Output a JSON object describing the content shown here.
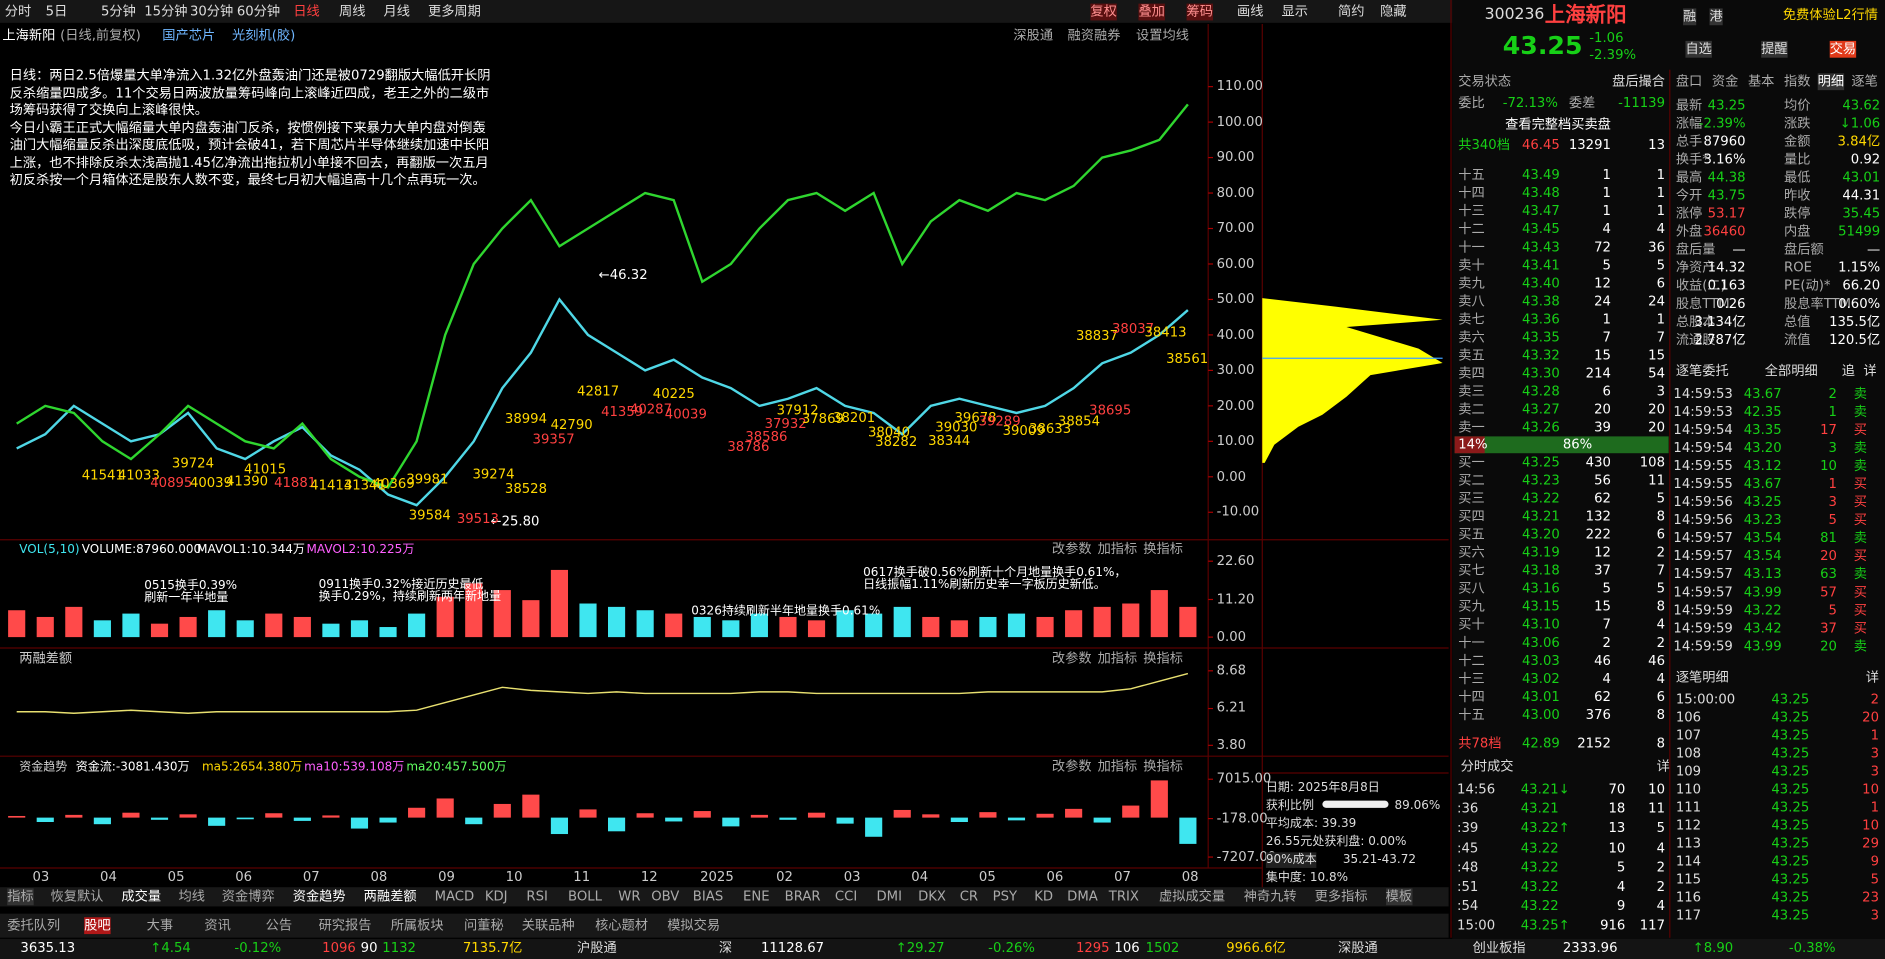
{
  "toolbar": {
    "periods": [
      "分时",
      "5日",
      "5分钟",
      "15分钟",
      "30分钟",
      "60分钟",
      "日线",
      "周线",
      "月线",
      "更多周期"
    ],
    "tools": [
      "复权",
      "叠加",
      "筹码",
      "画线",
      "显示",
      "简约",
      "隐藏"
    ]
  },
  "chart_header": {
    "name": "上海新阳",
    "mode": "(日线,前复权)",
    "tags": [
      "国产芯片",
      "光刻机(胶)"
    ],
    "links": [
      "深股通",
      "融资融券",
      "设置均线"
    ]
  },
  "commentary": [
    "日线：两日2.5倍爆量大单净流入1.32亿外盘轰油门还是被0729翻版大幅低开长阴反杀缩量四成多。11个交易日两波放量筹码峰向上滚峰近四成，老王之外的二级市场筹码获得了交换向上滚峰很快。",
    "今日小霸王正式大幅缩量大单内盘轰油门反杀，按惯例接下来暴力大单内盘对倒轰油门大幅缩量反杀出深度底低吸，预计会破41，若下周芯片半导体继续加速中长阳上涨，也不排除反杀太浅高抛1.45亿净流出拖拉机小单接不回去，再翻版一次五月初反杀按一个月箱体还是股东人数不变，最终七月初大幅追高十几个点再玩一次。"
  ],
  "chart_data": [
    {
      "type": "line",
      "x_axis_labels": [
        "03",
        "04",
        "05",
        "06",
        "07",
        "08",
        "09",
        "10",
        "11",
        "12",
        "2025",
        "02",
        "03",
        "04",
        "05",
        "06",
        "07",
        "08"
      ],
      "series": [
        {
          "name": "上海新阳",
          "color": "#4fd7e6",
          "values": [
            8,
            12,
            20,
            15,
            10,
            12,
            18,
            8,
            5,
            10,
            14,
            6,
            2,
            -5,
            -8,
            0,
            10,
            25,
            35,
            50,
            40,
            35,
            30,
            33,
            28,
            25,
            20,
            22,
            25,
            20,
            18,
            12,
            20,
            22,
            20,
            18,
            20,
            25,
            32,
            35,
            40,
            47
          ]
        },
        {
          "name": "光刻机(胶)",
          "color": "#2fd62f",
          "values": [
            15,
            20,
            18,
            10,
            5,
            12,
            20,
            15,
            10,
            8,
            15,
            5,
            0,
            -3,
            10,
            40,
            60,
            70,
            78,
            65,
            70,
            75,
            80,
            78,
            55,
            60,
            70,
            78,
            80,
            75,
            80,
            60,
            72,
            78,
            75,
            80,
            78,
            82,
            90,
            92,
            95,
            105
          ]
        }
      ],
      "ylim": [
        -16.4,
        116.8
      ],
      "yticks": [
        {
          "value": 110,
          "label": "110.00"
        },
        {
          "value": 100,
          "label": "100.00"
        },
        {
          "value": 90,
          "label": "90.00"
        },
        {
          "value": 80,
          "label": "80.00"
        },
        {
          "value": 70,
          "label": "70.00"
        },
        {
          "value": 60,
          "label": "60.00"
        },
        {
          "value": 50,
          "label": "50.00"
        },
        {
          "value": 40,
          "label": "40.00"
        },
        {
          "value": 30,
          "label": "30.00"
        },
        {
          "value": 20,
          "label": "20.00"
        },
        {
          "value": 10,
          "label": "10.00"
        },
        {
          "value": 0,
          "label": "0.00"
        },
        {
          "value": -10,
          "label": "-10.00"
        }
      ]
    },
    {
      "type": "bar",
      "colors": [
        "#ff4a4a",
        "#3fe6f0"
      ],
      "values": [
        8,
        6,
        9,
        5,
        7,
        4,
        6,
        8,
        5,
        7,
        6,
        4,
        5,
        3,
        7,
        12,
        16,
        14,
        11,
        20,
        10,
        9,
        8,
        7,
        6,
        5,
        7,
        6,
        5,
        8,
        7,
        9,
        6,
        5,
        6,
        7,
        6,
        8,
        9,
        10,
        14,
        9
      ],
      "ylim": [
        -1.8,
        27.9
      ],
      "yticks": [
        {
          "value": 22.6,
          "label": "22.60"
        },
        {
          "value": 11.2,
          "label": "11.20"
        },
        {
          "value": 0,
          "label": "0.00"
        }
      ]
    },
    {
      "type": "line",
      "color": "#e8e070",
      "values": [
        6.0,
        6.0,
        5.9,
        6.0,
        6.1,
        6.0,
        5.9,
        6.0,
        6.0,
        6.0,
        6.0,
        6.0,
        6.0,
        6.0,
        6.1,
        6.6,
        7.1,
        7.6,
        7.4,
        7.3,
        7.2,
        7.3,
        7.2,
        7.2,
        7.2,
        7.2,
        7.3,
        7.3,
        7.2,
        7.2,
        7.2,
        7.2,
        7.2,
        7.2,
        7.3,
        7.3,
        7.3,
        7.3,
        7.3,
        7.5,
        8.0,
        8.5
      ],
      "ylim": [
        3.17,
        9.94
      ],
      "yticks": [
        {
          "value": 8.68,
          "label": "8.68"
        },
        {
          "value": 6.21,
          "label": "6.21"
        },
        {
          "value": 3.8,
          "label": "3.80"
        }
      ]
    },
    {
      "type": "bar",
      "colors": [
        "#ff4a4a",
        "#3fe6f0"
      ],
      "values": [
        300,
        -800,
        500,
        -1200,
        900,
        -400,
        600,
        -1500,
        -300,
        800,
        -600,
        400,
        -2000,
        -900,
        1800,
        3500,
        -1200,
        2500,
        4200,
        -3000,
        1500,
        -2500,
        800,
        -700,
        1200,
        -1600,
        500,
        -400,
        900,
        -1100,
        -3500,
        1400,
        600,
        -800,
        1000,
        -500,
        700,
        1600,
        -900,
        2200,
        6800,
        -4800
      ],
      "ylim": [
        -8760,
        10570
      ],
      "yticks": [
        {
          "value": 7015,
          "label": "7015.00"
        },
        {
          "value": -178,
          "label": "-178.00"
        },
        {
          "value": -7207,
          "label": "-7207.00"
        }
      ]
    }
  ],
  "price_annotations": {
    "high": "←46.32",
    "low": "←25.80",
    "counts": [
      "41541",
      "41033",
      "40895",
      "40039",
      "39724",
      "41390",
      "41015",
      "41881",
      "41413",
      "41341",
      "40369",
      "39981",
      "39584",
      "39274",
      "38528",
      "39513",
      "38994",
      "39357",
      "42790",
      "42817",
      "41359",
      "40287",
      "40225",
      "40039",
      "38786",
      "38586",
      "37932",
      "37912",
      "37869",
      "38201",
      "38040",
      "38282",
      "39030",
      "38344",
      "39678",
      "39289",
      "39009",
      "38633",
      "38854",
      "38695",
      "38837",
      "38037",
      "38413",
      "38561"
    ]
  },
  "volume_notes": [
    "0515换手0.39%",
    "刷新一年半地量",
    "0911换手0.32%接近历史最低",
    "换手0.29%，持续刷新两年新地量",
    "0326持续刷新半年地量换手0.61%",
    "0617换手破0.56%刷新十个月地量换手0.61%，",
    "日线振幅1.11%刷新历史幸一字板历史新低。"
  ],
  "panes": {
    "volume_legend": [
      "VOL(5,10)",
      "VOLUME:87960.000",
      "MAVOL1:10.344万",
      "MAVOL2:10.225万"
    ],
    "margin_title": "两融差额",
    "fund_legend": [
      "资金趋势",
      "资金流:-3081.430万",
      "ma5:2654.380万",
      "ma10:539.108万",
      "ma20:457.500万"
    ],
    "pane_buttons": [
      "改参数",
      "加指标",
      "换指标"
    ]
  },
  "chips": {
    "date": "日期: 2025年8月8日",
    "profit_label": "获利比例",
    "profit": "89.06%",
    "avg_cost": "平均成本: 39.39",
    "profit_at": "26.55元处获利盘: 0.00%",
    "cost_select": "90%成本",
    "cost_range": "35.21-43.72",
    "concentration": "集中度: 10.8%"
  },
  "indicator_tabs": [
    "指标",
    "恢复默认",
    "成交量",
    "均线",
    "资金博弈",
    "资金趋势",
    "两融差额",
    "MACD",
    "KDJ",
    "RSI",
    "BOLL",
    "WR",
    "OBV",
    "BIAS",
    "ENE",
    "BRAR",
    "CCI",
    "DMI",
    "DKX",
    "CR",
    "PSY",
    "KD",
    "DMA",
    "TRIX",
    "虚拟成交量",
    "神奇九转",
    "更多指标",
    "模板"
  ],
  "info_tabs": [
    "委托队列",
    "股吧",
    "大事",
    "资讯",
    "公告",
    "研究报告",
    "所属板块",
    "问董秘",
    "关联品种",
    "核心题材",
    "模拟交易"
  ],
  "status_bar": [
    "3635.13",
    "↑4.54",
    "-0.12%",
    "1096",
    "90",
    "1132",
    "7135.7亿",
    "沪股通",
    "深",
    "11128.67",
    "↑29.27",
    "-0.26%",
    "1295",
    "106",
    "1502",
    "9966.6亿",
    "深股通",
    "创业板指",
    "2333.96",
    "↑8.90",
    "-0.38%"
  ],
  "quote": {
    "code": "300236",
    "name": "上海新阳",
    "badges": [
      "融",
      "港"
    ],
    "l2": "免费体验L2行情",
    "price": "43.25",
    "change": "-1.06",
    "pct": "-2.39%",
    "buttons": [
      "自选",
      "提醒",
      "交易"
    ]
  },
  "order_book": {
    "status": [
      "交易状态",
      "盘后撮合"
    ],
    "ratio": [
      "委比",
      "-72.13%",
      "委差",
      "-11139"
    ],
    "full": "查看完整档买卖盘",
    "sell_total": [
      "共340档",
      "46.45",
      "13291",
      "13"
    ],
    "sells": [
      [
        "十五",
        "43.49",
        "1",
        "1"
      ],
      [
        "十四",
        "43.48",
        "1",
        "1"
      ],
      [
        "十三",
        "43.47",
        "1",
        "1"
      ],
      [
        "十二",
        "43.45",
        "4",
        "4"
      ],
      [
        "十一",
        "43.43",
        "72",
        "36"
      ],
      [
        "卖十",
        "43.41",
        "5",
        "5"
      ],
      [
        "卖九",
        "43.40",
        "12",
        "6"
      ],
      [
        "卖八",
        "43.38",
        "24",
        "24"
      ],
      [
        "卖七",
        "43.36",
        "1",
        "1"
      ],
      [
        "卖六",
        "43.35",
        "7",
        "7"
      ],
      [
        "卖五",
        "43.32",
        "15",
        "15"
      ],
      [
        "卖四",
        "43.30",
        "214",
        "54"
      ],
      [
        "卖三",
        "43.28",
        "6",
        "3"
      ],
      [
        "卖二",
        "43.27",
        "20",
        "20"
      ],
      [
        "卖一",
        "43.26",
        "39",
        "20"
      ]
    ],
    "split": [
      "14%",
      "86%"
    ],
    "buys": [
      [
        "买一",
        "43.25",
        "430",
        "108"
      ],
      [
        "买二",
        "43.23",
        "56",
        "11"
      ],
      [
        "买三",
        "43.22",
        "62",
        "5"
      ],
      [
        "买四",
        "43.21",
        "132",
        "8"
      ],
      [
        "买五",
        "43.20",
        "222",
        "6"
      ],
      [
        "买六",
        "43.19",
        "12",
        "2"
      ],
      [
        "买七",
        "43.18",
        "37",
        "7"
      ],
      [
        "买八",
        "43.16",
        "5",
        "5"
      ],
      [
        "买九",
        "43.15",
        "15",
        "8"
      ],
      [
        "买十",
        "43.10",
        "7",
        "4"
      ],
      [
        "十一",
        "43.06",
        "2",
        "2"
      ],
      [
        "十二",
        "43.03",
        "46",
        "46"
      ],
      [
        "十三",
        "43.02",
        "4",
        "4"
      ],
      [
        "十四",
        "43.01",
        "62",
        "6"
      ],
      [
        "十五",
        "43.00",
        "376",
        "8"
      ]
    ],
    "buy_total": [
      "共78档",
      "42.89",
      "2152",
      "8"
    ]
  },
  "trades": {
    "title": "分时成交",
    "more": "详",
    "rows": [
      [
        "14:56",
        "43.21↓",
        "70",
        "10"
      ],
      [
        ":36",
        "43.21",
        "18",
        "11"
      ],
      [
        ":39",
        "43.22↑",
        "13",
        "5"
      ],
      [
        ":45",
        "43.22",
        "10",
        "4"
      ],
      [
        ":48",
        "43.22",
        "5",
        "2"
      ],
      [
        ":51",
        "43.22",
        "4",
        "2"
      ],
      [
        ":54",
        "43.22",
        "9",
        "4"
      ],
      [
        "15:00",
        "43.25↑",
        "916",
        "117"
      ]
    ]
  },
  "stats": {
    "tabs": [
      "盘口",
      "资金",
      "基本",
      "指数",
      "明细",
      "逐笔"
    ],
    "rows": [
      [
        "最新",
        "43.25",
        "均价",
        "43.62"
      ],
      [
        "涨幅",
        "-2.39%",
        "涨跌",
        "↓1.06"
      ],
      [
        "总手",
        "87960",
        "金额",
        "3.84亿"
      ],
      [
        "换手*",
        "3.16%",
        "量比",
        "0.92"
      ],
      [
        "最高",
        "44.38",
        "最低",
        "43.01"
      ],
      [
        "今开",
        "43.75",
        "昨收",
        "44.31"
      ],
      [
        "涨停",
        "53.17",
        "跌停",
        "35.45"
      ],
      [
        "外盘",
        "36460",
        "内盘",
        "51499"
      ],
      [
        "盘后量",
        "—",
        "盘后额",
        "—"
      ],
      [
        "净资产",
        "14.32",
        "ROE",
        "1.15%"
      ],
      [
        "收益(二)",
        "0.163",
        "PE(动)*",
        "66.20"
      ],
      [
        "股息TTM",
        "0.26",
        "股息率TTM",
        "0.60%"
      ],
      [
        "总股本",
        "3.134亿",
        "总值",
        "135.5亿"
      ],
      [
        "流通股",
        "2.787亿",
        "流值",
        "120.5亿"
      ]
    ]
  },
  "tick_orders": {
    "title": "逐笔委托",
    "filter": "全部明细",
    "buttons": [
      "追",
      "详"
    ],
    "rows": [
      [
        "14:59:53",
        "43.67",
        "2",
        "卖"
      ],
      [
        "14:59:53",
        "42.35",
        "1",
        "卖"
      ],
      [
        "14:59:54",
        "43.35",
        "17",
        "买"
      ],
      [
        "14:59:54",
        "43.20",
        "3",
        "卖"
      ],
      [
        "14:59:55",
        "43.12",
        "10",
        "卖"
      ],
      [
        "14:59:55",
        "43.67",
        "1",
        "买"
      ],
      [
        "14:59:56",
        "43.25",
        "3",
        "买"
      ],
      [
        "14:59:56",
        "43.23",
        "5",
        "买"
      ],
      [
        "14:59:57",
        "43.54",
        "81",
        "卖"
      ],
      [
        "14:59:57",
        "43.54",
        "20",
        "买"
      ],
      [
        "14:59:57",
        "43.13",
        "63",
        "卖"
      ],
      [
        "14:59:57",
        "43.99",
        "57",
        "买"
      ],
      [
        "14:59:59",
        "43.22",
        "5",
        "买"
      ],
      [
        "14:59:59",
        "43.42",
        "37",
        "买"
      ],
      [
        "14:59:59",
        "43.99",
        "20",
        "卖"
      ]
    ]
  },
  "tick_details": {
    "title": "逐笔明细",
    "more": "详",
    "rows": [
      [
        "15:00:00",
        "43.25",
        "2"
      ],
      [
        "106",
        "43.25",
        "20"
      ],
      [
        "107",
        "43.25",
        "1"
      ],
      [
        "108",
        "43.25",
        "3"
      ],
      [
        "109",
        "43.25",
        "3"
      ],
      [
        "110",
        "43.25",
        "10"
      ],
      [
        "111",
        "43.25",
        "1"
      ],
      [
        "112",
        "43.25",
        "10"
      ],
      [
        "113",
        "43.25",
        "29"
      ],
      [
        "114",
        "43.25",
        "9"
      ],
      [
        "115",
        "43.25",
        "5"
      ],
      [
        "116",
        "43.25",
        "23"
      ],
      [
        "117",
        "43.25",
        "3"
      ]
    ]
  }
}
